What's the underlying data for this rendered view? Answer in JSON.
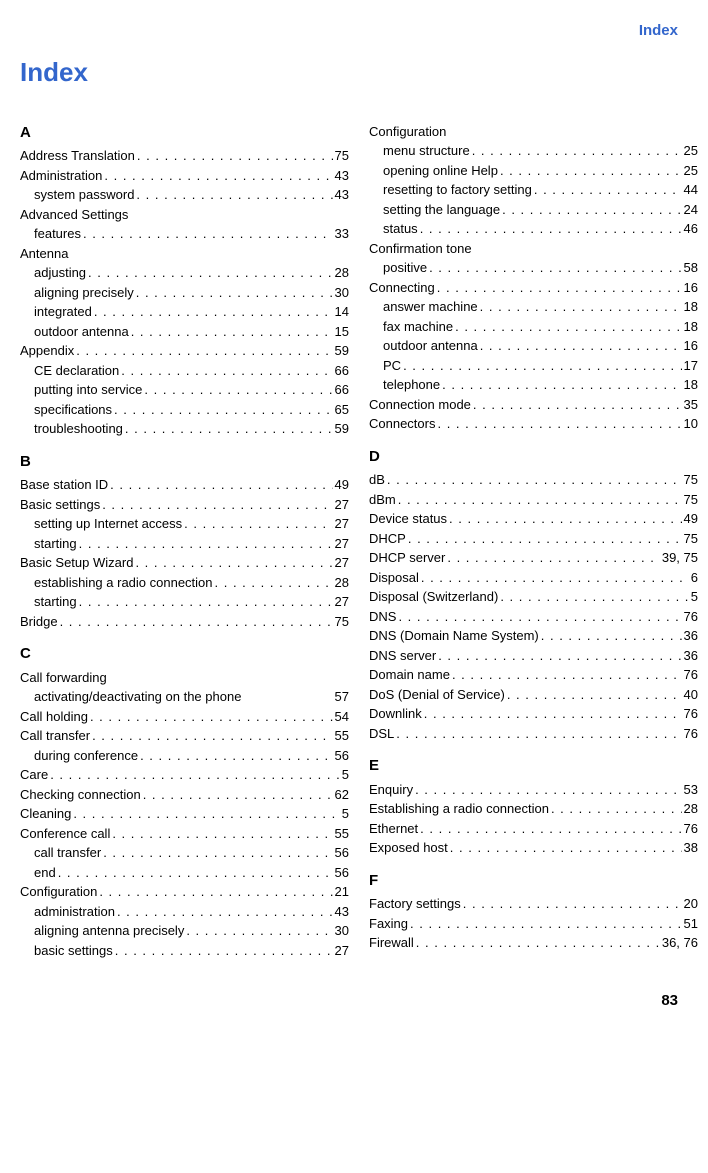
{
  "header": {
    "right_label": "Index",
    "title": "Index"
  },
  "page_number": "83",
  "columns": [
    {
      "sections": [
        {
          "letter": "A",
          "entries": [
            {
              "label": "Address Translation",
              "page": "75",
              "sub": false
            },
            {
              "label": "Administration",
              "page": "43",
              "sub": false
            },
            {
              "label": "system password",
              "page": "43",
              "sub": true
            },
            {
              "label": "Advanced Settings",
              "page": "",
              "sub": false,
              "no_page": true
            },
            {
              "label": "features",
              "page": "33",
              "sub": true
            },
            {
              "label": "Antenna",
              "page": "",
              "sub": false,
              "no_page": true
            },
            {
              "label": "adjusting",
              "page": "28",
              "sub": true
            },
            {
              "label": "aligning precisely",
              "page": "30",
              "sub": true
            },
            {
              "label": "integrated",
              "page": "14",
              "sub": true
            },
            {
              "label": "outdoor antenna",
              "page": "15",
              "sub": true
            },
            {
              "label": "Appendix",
              "page": "59",
              "sub": false
            },
            {
              "label": "CE declaration",
              "page": "66",
              "sub": true
            },
            {
              "label": "putting into service",
              "page": "66",
              "sub": true
            },
            {
              "label": "specifications",
              "page": "65",
              "sub": true
            },
            {
              "label": "troubleshooting",
              "page": "59",
              "sub": true
            }
          ]
        },
        {
          "letter": "B",
          "entries": [
            {
              "label": "Base station ID",
              "page": "49",
              "sub": false
            },
            {
              "label": "Basic settings",
              "page": "27",
              "sub": false
            },
            {
              "label": "setting up Internet access",
              "page": "27",
              "sub": true
            },
            {
              "label": "starting",
              "page": "27",
              "sub": true
            },
            {
              "label": "Basic Setup Wizard",
              "page": "27",
              "sub": false
            },
            {
              "label": "establishing a radio connection",
              "page": "28",
              "sub": true
            },
            {
              "label": "starting",
              "page": "27",
              "sub": true
            },
            {
              "label": "Bridge",
              "page": "75",
              "sub": false
            }
          ]
        },
        {
          "letter": "C",
          "entries": [
            {
              "label": "Call forwarding",
              "page": "",
              "sub": false,
              "no_page": true
            },
            {
              "label": "activating/deactivating on the phone",
              "page": "57",
              "sub": true,
              "tight": true
            },
            {
              "label": "Call holding",
              "page": "54",
              "sub": false
            },
            {
              "label": "Call transfer",
              "page": "55",
              "sub": false
            },
            {
              "label": "during conference",
              "page": "56",
              "sub": true
            },
            {
              "label": "Care",
              "page": "5",
              "sub": false
            },
            {
              "label": "Checking connection",
              "page": "62",
              "sub": false
            },
            {
              "label": "Cleaning",
              "page": "5",
              "sub": false
            },
            {
              "label": "Conference call",
              "page": "55",
              "sub": false
            },
            {
              "label": "call transfer",
              "page": "56",
              "sub": true
            },
            {
              "label": "end",
              "page": "56",
              "sub": true
            },
            {
              "label": "Configuration",
              "page": "21",
              "sub": false
            },
            {
              "label": "administration",
              "page": "43",
              "sub": true
            },
            {
              "label": "aligning antenna precisely",
              "page": "30",
              "sub": true
            },
            {
              "label": "basic settings",
              "page": "27",
              "sub": true
            }
          ]
        }
      ]
    },
    {
      "sections": [
        {
          "letter": "",
          "entries": [
            {
              "label": "Configuration",
              "page": "",
              "sub": false,
              "no_page": true
            },
            {
              "label": "menu structure",
              "page": "25",
              "sub": true
            },
            {
              "label": "opening online Help",
              "page": "25",
              "sub": true
            },
            {
              "label": "resetting to factory setting",
              "page": "44",
              "sub": true
            },
            {
              "label": "setting the language",
              "page": "24",
              "sub": true
            },
            {
              "label": "status",
              "page": "46",
              "sub": true
            },
            {
              "label": "Confirmation tone",
              "page": "",
              "sub": false,
              "no_page": true
            },
            {
              "label": "positive",
              "page": "58",
              "sub": true
            },
            {
              "label": "Connecting",
              "page": "16",
              "sub": false
            },
            {
              "label": "answer machine",
              "page": "18",
              "sub": true
            },
            {
              "label": "fax machine",
              "page": "18",
              "sub": true
            },
            {
              "label": "outdoor antenna",
              "page": "16",
              "sub": true
            },
            {
              "label": "PC",
              "page": "17",
              "sub": true
            },
            {
              "label": "telephone",
              "page": "18",
              "sub": true
            },
            {
              "label": "Connection mode",
              "page": "35",
              "sub": false
            },
            {
              "label": "Connectors",
              "page": "10",
              "sub": false
            }
          ]
        },
        {
          "letter": "D",
          "entries": [
            {
              "label": "dB",
              "page": "75",
              "sub": false
            },
            {
              "label": "dBm",
              "page": "75",
              "sub": false
            },
            {
              "label": "Device status",
              "page": "49",
              "sub": false
            },
            {
              "label": "DHCP",
              "page": "75",
              "sub": false
            },
            {
              "label": "DHCP server",
              "page": "39, 75",
              "sub": false
            },
            {
              "label": "Disposal",
              "page": "6",
              "sub": false
            },
            {
              "label": "Disposal (Switzerland)",
              "page": "5",
              "sub": false
            },
            {
              "label": "DNS",
              "page": "76",
              "sub": false
            },
            {
              "label": "DNS (Domain Name System)",
              "page": "36",
              "sub": false
            },
            {
              "label": "DNS server",
              "page": "36",
              "sub": false
            },
            {
              "label": "Domain name",
              "page": "76",
              "sub": false
            },
            {
              "label": "DoS (Denial of Service)",
              "page": "40",
              "sub": false
            },
            {
              "label": "Downlink",
              "page": "76",
              "sub": false
            },
            {
              "label": "DSL",
              "page": "76",
              "sub": false
            }
          ]
        },
        {
          "letter": "E",
          "entries": [
            {
              "label": "Enquiry",
              "page": "53",
              "sub": false
            },
            {
              "label": "Establishing a radio connection",
              "page": "28",
              "sub": false
            },
            {
              "label": "Ethernet",
              "page": "76",
              "sub": false
            },
            {
              "label": "Exposed host",
              "page": "38",
              "sub": false
            }
          ]
        },
        {
          "letter": "F",
          "entries": [
            {
              "label": "Factory settings",
              "page": "20",
              "sub": false
            },
            {
              "label": "Faxing",
              "page": "51",
              "sub": false
            },
            {
              "label": "Firewall",
              "page": "36, 76",
              "sub": false
            }
          ]
        }
      ]
    }
  ]
}
